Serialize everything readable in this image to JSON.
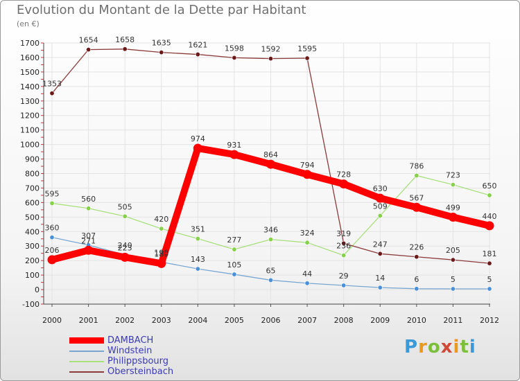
{
  "title": "Evolution du Montant de la Dette par Habitant",
  "unit_label": "(en €)",
  "logo_text": "Proxiti",
  "chart_data": {
    "type": "line",
    "title": "Evolution du Montant de la Dette par Habitant",
    "ylabel": "(en €)",
    "xlabel": "",
    "x": [
      "2000",
      "2001",
      "2002",
      "2003",
      "2004",
      "2005",
      "2006",
      "2007",
      "2008",
      "2009",
      "2010",
      "2011",
      "2012"
    ],
    "ylim": [
      -100,
      1700
    ],
    "yticks": [
      -100,
      0,
      100,
      200,
      300,
      400,
      500,
      600,
      700,
      800,
      900,
      1000,
      1100,
      1200,
      1300,
      1400,
      1500,
      1600,
      1700
    ],
    "grid": true,
    "legend_position": "bottom-left",
    "series": [
      {
        "name": "DAMBACH",
        "color": "#ff0000",
        "marker": "#ff0000",
        "emphasis": true,
        "values": [
          206,
          271,
          223,
          180,
          974,
          931,
          864,
          794,
          728,
          630,
          567,
          499,
          440
        ]
      },
      {
        "name": "Windstein",
        "color": "#79a6d2",
        "marker": "#4a90d9",
        "emphasis": false,
        "values": [
          360,
          307,
          240,
          190,
          143,
          105,
          65,
          44,
          29,
          14,
          6,
          5,
          5
        ]
      },
      {
        "name": "Philippsbourg",
        "color": "#a8e07e",
        "marker": "#86d04a",
        "emphasis": false,
        "values": [
          595,
          560,
          505,
          420,
          351,
          277,
          346,
          324,
          236,
          509,
          786,
          723,
          650
        ]
      },
      {
        "name": "Obersteinbach",
        "color": "#8b3a3a",
        "marker": "#6b1a1a",
        "emphasis": false,
        "values": [
          1353,
          1654,
          1658,
          1635,
          1621,
          1598,
          1592,
          1595,
          319,
          247,
          226,
          205,
          181
        ]
      }
    ]
  }
}
